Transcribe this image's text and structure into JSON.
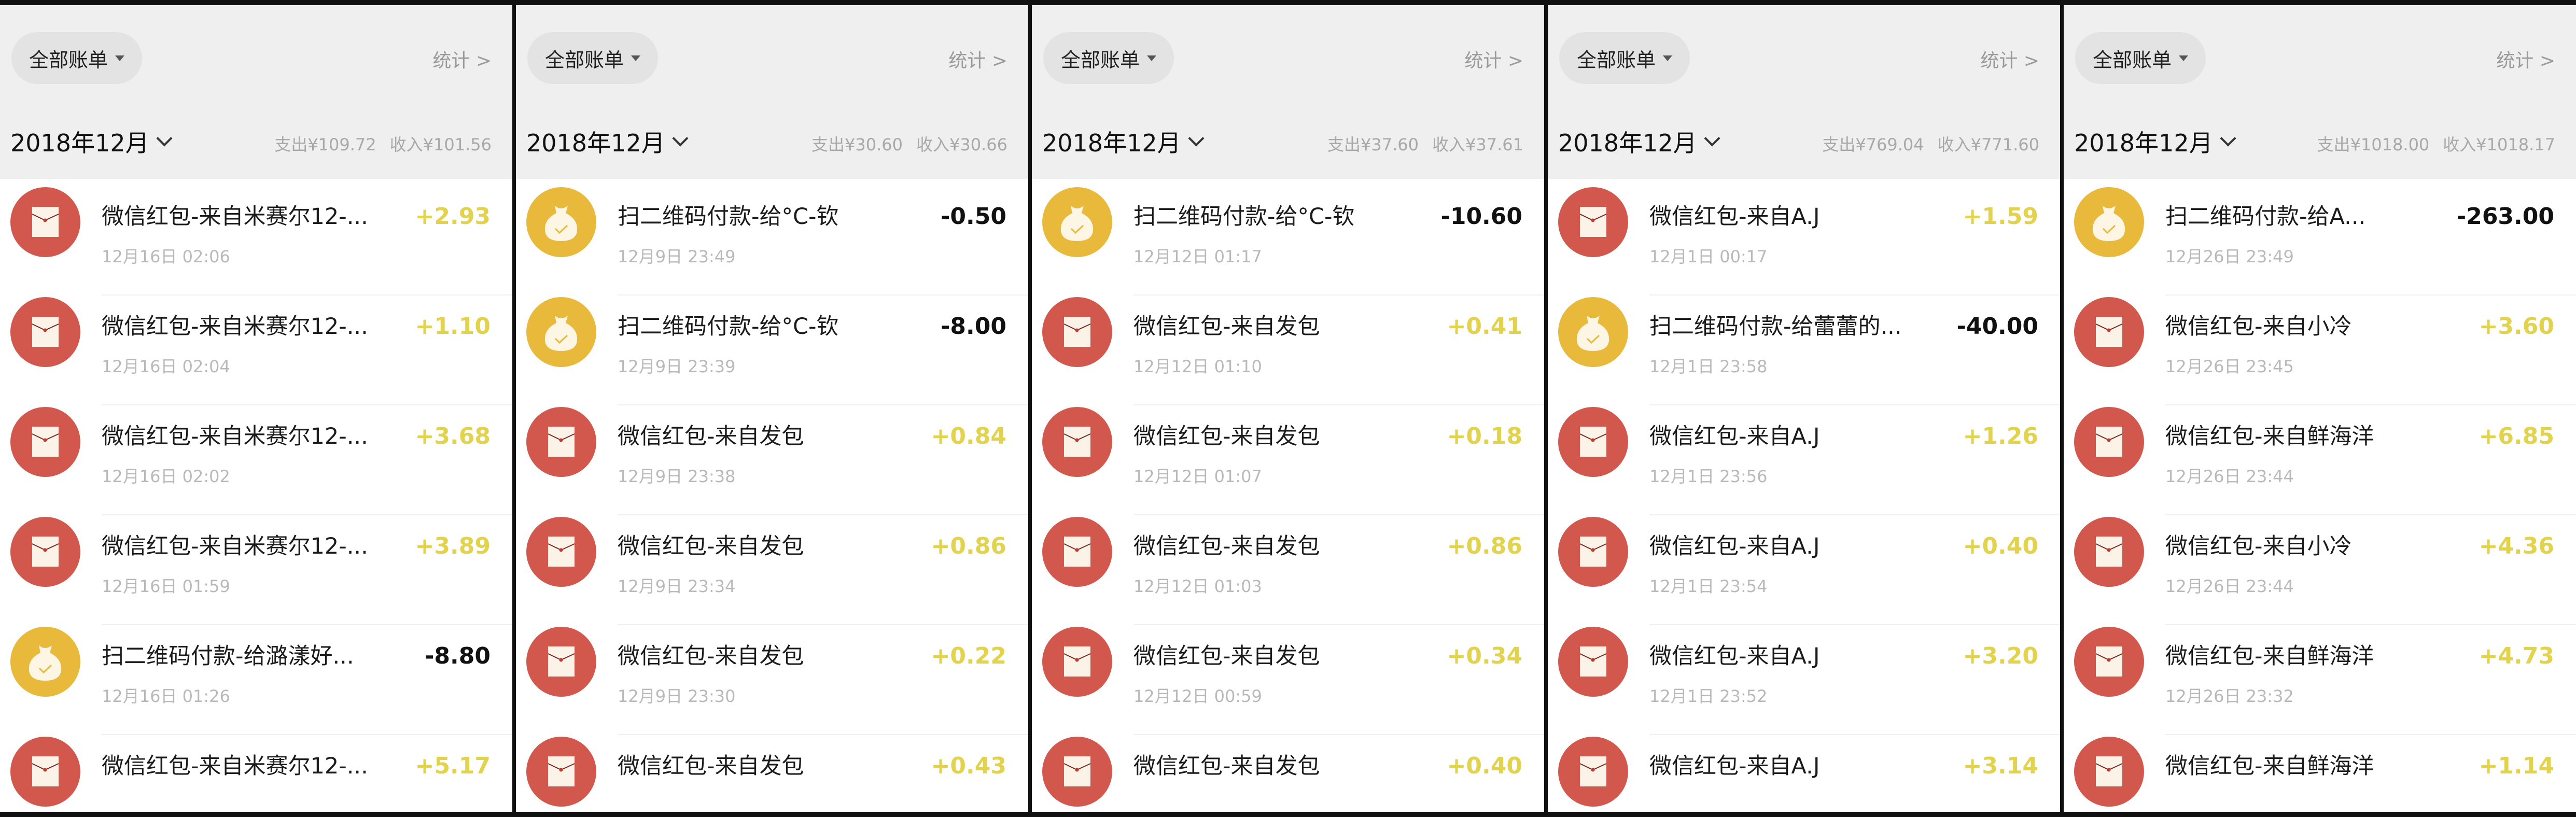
{
  "colors": {
    "income": "#e3d24c",
    "expense": "#111111",
    "red_packet_icon": "#d2584e",
    "qr_pay_icon": "#e8b93a",
    "header_bg": "#efefef"
  },
  "panels": [
    {
      "filter_label": "全部账单",
      "stats_label": "统计 >",
      "month_label": "2018年12月",
      "expense_summary": "支出¥109.72",
      "income_summary": "收入¥101.56",
      "rows": [
        {
          "icon": "red-packet-icon",
          "title": "微信红包-来自米赛尔12-...",
          "date": "12月16日 02:06",
          "amount": "+2.93",
          "type": "income"
        },
        {
          "icon": "red-packet-icon",
          "title": "微信红包-来自米赛尔12-...",
          "date": "12月16日 02:04",
          "amount": "+1.10",
          "type": "income"
        },
        {
          "icon": "red-packet-icon",
          "title": "微信红包-来自米赛尔12-...",
          "date": "12月16日 02:02",
          "amount": "+3.68",
          "type": "income"
        },
        {
          "icon": "red-packet-icon",
          "title": "微信红包-来自米赛尔12-...",
          "date": "12月16日 01:59",
          "amount": "+3.89",
          "type": "income"
        },
        {
          "icon": "money-bag-icon",
          "title": "扫二维码付款-给潞漾好...",
          "date": "12月16日 01:26",
          "amount": "-8.80",
          "type": "expense"
        },
        {
          "icon": "red-packet-icon",
          "title": "微信红包-来自米赛尔12-...",
          "date": "",
          "amount": "+5.17",
          "type": "income"
        }
      ]
    },
    {
      "filter_label": "全部账单",
      "stats_label": "统计 >",
      "month_label": "2018年12月",
      "expense_summary": "支出¥30.60",
      "income_summary": "收入¥30.66",
      "rows": [
        {
          "icon": "money-bag-icon",
          "title": "扫二维码付款-给°C-钦",
          "date": "12月9日 23:49",
          "amount": "-0.50",
          "type": "expense"
        },
        {
          "icon": "money-bag-icon",
          "title": "扫二维码付款-给°C-钦",
          "date": "12月9日 23:39",
          "amount": "-8.00",
          "type": "expense"
        },
        {
          "icon": "red-packet-icon",
          "title": "微信红包-来自发包",
          "date": "12月9日 23:38",
          "amount": "+0.84",
          "type": "income"
        },
        {
          "icon": "red-packet-icon",
          "title": "微信红包-来自发包",
          "date": "12月9日 23:34",
          "amount": "+0.86",
          "type": "income"
        },
        {
          "icon": "red-packet-icon",
          "title": "微信红包-来自发包",
          "date": "12月9日 23:30",
          "amount": "+0.22",
          "type": "income"
        },
        {
          "icon": "red-packet-icon",
          "title": "微信红包-来自发包",
          "date": "",
          "amount": "+0.43",
          "type": "income"
        }
      ]
    },
    {
      "filter_label": "全部账单",
      "stats_label": "统计 >",
      "month_label": "2018年12月",
      "expense_summary": "支出¥37.60",
      "income_summary": "收入¥37.61",
      "rows": [
        {
          "icon": "money-bag-icon",
          "title": "扫二维码付款-给°C-钦",
          "date": "12月12日 01:17",
          "amount": "-10.60",
          "type": "expense"
        },
        {
          "icon": "red-packet-icon",
          "title": "微信红包-来自发包",
          "date": "12月12日 01:10",
          "amount": "+0.41",
          "type": "income"
        },
        {
          "icon": "red-packet-icon",
          "title": "微信红包-来自发包",
          "date": "12月12日 01:07",
          "amount": "+0.18",
          "type": "income"
        },
        {
          "icon": "red-packet-icon",
          "title": "微信红包-来自发包",
          "date": "12月12日 01:03",
          "amount": "+0.86",
          "type": "income"
        },
        {
          "icon": "red-packet-icon",
          "title": "微信红包-来自发包",
          "date": "12月12日 00:59",
          "amount": "+0.34",
          "type": "income"
        },
        {
          "icon": "red-packet-icon",
          "title": "微信红包-来自发包",
          "date": "",
          "amount": "+0.40",
          "type": "income"
        }
      ]
    },
    {
      "filter_label": "全部账单",
      "stats_label": "统计 >",
      "month_label": "2018年12月",
      "expense_summary": "支出¥769.04",
      "income_summary": "收入¥771.60",
      "rows": [
        {
          "icon": "red-packet-icon",
          "title": "微信红包-来自A.J",
          "date": "12月1日 00:17",
          "amount": "+1.59",
          "type": "income"
        },
        {
          "icon": "money-bag-icon",
          "title": "扫二维码付款-给蕾蕾的...",
          "date": "12月1日 23:58",
          "amount": "-40.00",
          "type": "expense"
        },
        {
          "icon": "red-packet-icon",
          "title": "微信红包-来自A.J",
          "date": "12月1日 23:56",
          "amount": "+1.26",
          "type": "income"
        },
        {
          "icon": "red-packet-icon",
          "title": "微信红包-来自A.J",
          "date": "12月1日 23:54",
          "amount": "+0.40",
          "type": "income"
        },
        {
          "icon": "red-packet-icon",
          "title": "微信红包-来自A.J",
          "date": "12月1日 23:52",
          "amount": "+3.20",
          "type": "income"
        },
        {
          "icon": "red-packet-icon",
          "title": "微信红包-来自A.J",
          "date": "",
          "amount": "+3.14",
          "type": "income"
        }
      ]
    },
    {
      "filter_label": "全部账单",
      "stats_label": "统计 >",
      "month_label": "2018年12月",
      "expense_summary": "支出¥1018.00",
      "income_summary": "收入¥1018.17",
      "rows": [
        {
          "icon": "money-bag-icon",
          "title": "扫二维码付款-给A...",
          "date": "12月26日 23:49",
          "amount": "-263.00",
          "type": "expense"
        },
        {
          "icon": "red-packet-icon",
          "title": "微信红包-来自小冷",
          "date": "12月26日 23:45",
          "amount": "+3.60",
          "type": "income"
        },
        {
          "icon": "red-packet-icon",
          "title": "微信红包-来自鲜海洋",
          "date": "12月26日 23:44",
          "amount": "+6.85",
          "type": "income"
        },
        {
          "icon": "red-packet-icon",
          "title": "微信红包-来自小冷",
          "date": "12月26日 23:44",
          "amount": "+4.36",
          "type": "income"
        },
        {
          "icon": "red-packet-icon",
          "title": "微信红包-来自鲜海洋",
          "date": "12月26日 23:32",
          "amount": "+4.73",
          "type": "income"
        },
        {
          "icon": "red-packet-icon",
          "title": "微信红包-来自鲜海洋",
          "date": "",
          "amount": "+1.14",
          "type": "income"
        }
      ]
    }
  ]
}
